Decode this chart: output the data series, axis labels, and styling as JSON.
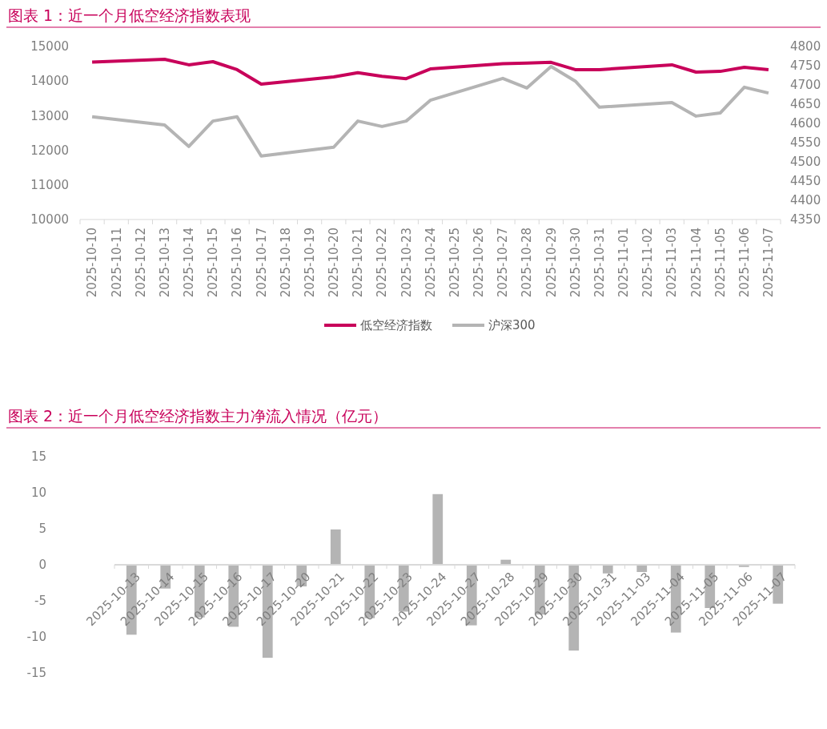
{
  "chart_data": [
    {
      "type": "line",
      "title": "图表 1：近一个月低空经济指数表现",
      "categories": [
        "2025-10-10",
        "2025-10-11",
        "2025-10-12",
        "2025-10-13",
        "2025-10-14",
        "2025-10-15",
        "2025-10-16",
        "2025-10-17",
        "2025-10-18",
        "2025-10-19",
        "2025-10-20",
        "2025-10-21",
        "2025-10-22",
        "2025-10-23",
        "2025-10-24",
        "2025-10-25",
        "2025-10-26",
        "2025-10-27",
        "2025-10-28",
        "2025-10-29",
        "2025-10-30",
        "2025-10-31",
        "2025-11-01",
        "2025-11-02",
        "2025-11-03",
        "2025-11-04",
        "2025-11-05",
        "2025-11-06",
        "2025-11-07"
      ],
      "series": [
        {
          "name": "低空经济指数",
          "color": "#c8005a",
          "values": [
            14550,
            null,
            null,
            14630,
            14470,
            14560,
            14330,
            13910,
            null,
            null,
            14120,
            14240,
            14140,
            14070,
            14350,
            null,
            null,
            14500,
            14520,
            14540,
            14330,
            14330,
            null,
            null,
            14470,
            14260,
            14280,
            14400,
            14330
          ]
        },
        {
          "name": "沪深300",
          "color": "#b4b4b4",
          "axis": "y2",
          "values": [
            4617,
            null,
            null,
            4596,
            4540,
            4606,
            4617,
            4515,
            null,
            null,
            4538,
            4606,
            4592,
            4606,
            4660,
            null,
            null,
            4717,
            4692,
            4748,
            4710,
            4642,
            null,
            null,
            4654,
            4619,
            4627,
            4694,
            4679
          ]
        }
      ],
      "ylim": [
        10000,
        15000
      ],
      "yticks": [
        10000,
        11000,
        12000,
        13000,
        14000,
        15000
      ],
      "y2lim": [
        4350,
        4800
      ],
      "y2ticks": [
        4350,
        4400,
        4450,
        4500,
        4550,
        4600,
        4650,
        4700,
        4750,
        4800
      ],
      "grid": false,
      "legend": "bottom"
    },
    {
      "type": "bar",
      "title": "图表 2：近一个月低空经济指数主力净流入情况（亿元）",
      "categories": [
        "2025-10-13",
        "2025-10-14",
        "2025-10-15",
        "2025-10-16",
        "2025-10-17",
        "2025-10-20",
        "2025-10-21",
        "2025-10-22",
        "2025-10-23",
        "2025-10-24",
        "2025-10-27",
        "2025-10-28",
        "2025-10-29",
        "2025-10-30",
        "2025-10-31",
        "2025-11-03",
        "2025-11-04",
        "2025-11-05",
        "2025-11-06",
        "2025-11-07"
      ],
      "values": [
        -9.7,
        -3.3,
        -7.3,
        -8.6,
        -12.9,
        -3.0,
        4.9,
        -7.4,
        -6.5,
        9.8,
        -8.4,
        0.7,
        -6.9,
        -11.9,
        -1.2,
        -1.0,
        -9.4,
        -6.0,
        -0.3,
        -5.4
      ],
      "color": "#b4b4b4",
      "ylim": [
        -15,
        15
      ],
      "yticks": [
        -15,
        -10,
        -5,
        0,
        5,
        10,
        15
      ],
      "grid": false,
      "legend": false
    }
  ]
}
